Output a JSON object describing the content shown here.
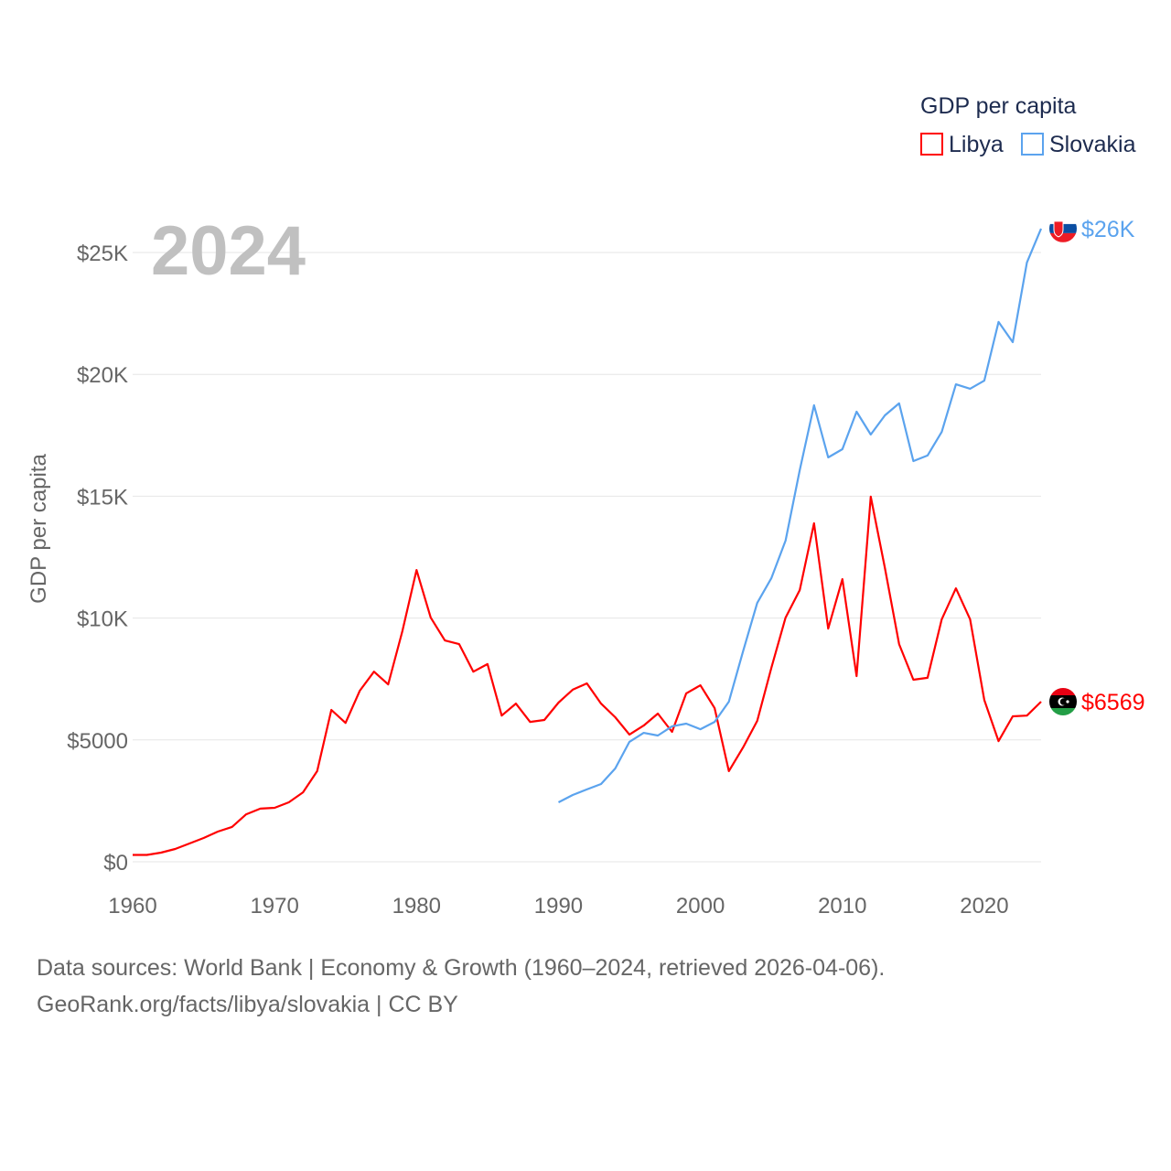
{
  "chart_data": {
    "type": "line",
    "title": "",
    "year_label": "2024",
    "xlabel": "",
    "ylabel": "GDP per capita",
    "xlim": [
      1960,
      2024
    ],
    "ylim": [
      0,
      26000
    ],
    "x_ticks": [
      1960,
      1970,
      1980,
      1990,
      2000,
      2010,
      2020
    ],
    "y_ticks": [
      {
        "value": 0,
        "label": "$0"
      },
      {
        "value": 5000,
        "label": "$5000"
      },
      {
        "value": 10000,
        "label": "$10K"
      },
      {
        "value": 15000,
        "label": "$15K"
      },
      {
        "value": 20000,
        "label": "$20K"
      },
      {
        "value": 25000,
        "label": "$25K"
      }
    ],
    "grid": true,
    "legend": {
      "title": "GDP per capita",
      "placement": "top-right"
    },
    "series": [
      {
        "name": "Libya",
        "color": "#ff0000",
        "end_label": "$6569",
        "start_year": 1960,
        "values": [
          280,
          280,
          375,
          525,
          750,
          975,
          1240,
          1430,
          1950,
          2180,
          2215,
          2440,
          2850,
          3720,
          6230,
          5700,
          7020,
          7800,
          7280,
          9460,
          11970,
          10020,
          9080,
          8930,
          7800,
          8110,
          6000,
          6490,
          5740,
          5820,
          6530,
          7060,
          7320,
          6490,
          5930,
          5220,
          5590,
          6080,
          5330,
          6910,
          7240,
          6310,
          3720,
          4690,
          5780,
          7960,
          10020,
          11150,
          13890,
          9570,
          11600,
          7620,
          14980,
          12050,
          8930,
          7470,
          7550,
          9950,
          11220,
          9950,
          6640,
          4950,
          5970,
          6000,
          6569
        ]
      },
      {
        "name": "Slovakia",
        "color": "#5ba3ee",
        "end_label": "$26K",
        "start_year": 1990,
        "values": [
          2440,
          2740,
          2970,
          3190,
          3830,
          4920,
          5290,
          5180,
          5560,
          5670,
          5440,
          5740,
          6570,
          8630,
          10620,
          11640,
          13180,
          16070,
          18730,
          16590,
          16930,
          18470,
          17530,
          18320,
          18810,
          16440,
          16670,
          17640,
          19590,
          19410,
          19740,
          22150,
          21320,
          24590,
          25980
        ]
      }
    ]
  },
  "footer": {
    "line1": "Data sources: World Bank | Economy & Growth (1960–2024, retrieved 2026-04-06).",
    "line2": "GeoRank.org/facts/libya/slovakia | CC BY"
  }
}
